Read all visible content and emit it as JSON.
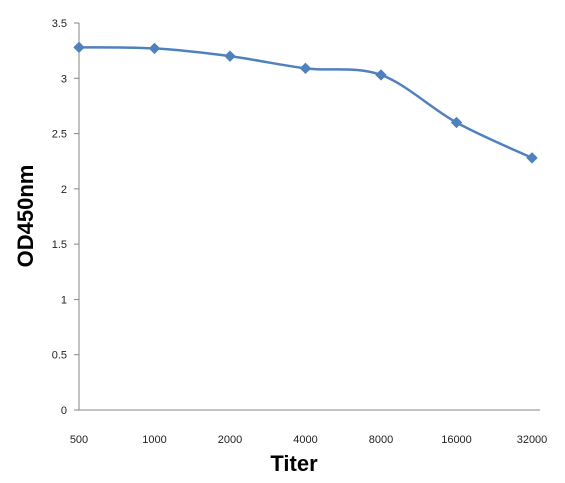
{
  "chart_data": {
    "type": "line",
    "title": "",
    "xlabel": "Titer",
    "ylabel": "OD450nm",
    "categories": [
      "500",
      "1000",
      "2000",
      "4000",
      "8000",
      "16000",
      "32000"
    ],
    "y_ticks": [
      "0",
      "0.5",
      "1",
      "1.5",
      "2",
      "2.5",
      "3",
      "3.5"
    ],
    "ylim": [
      0,
      3.5
    ],
    "grid": false,
    "legend": "none",
    "series": [
      {
        "values": [
          3.28,
          3.27,
          3.2,
          3.09,
          3.03,
          2.6,
          2.28
        ],
        "color": "#4F81BD",
        "marker": "diamond"
      }
    ]
  }
}
